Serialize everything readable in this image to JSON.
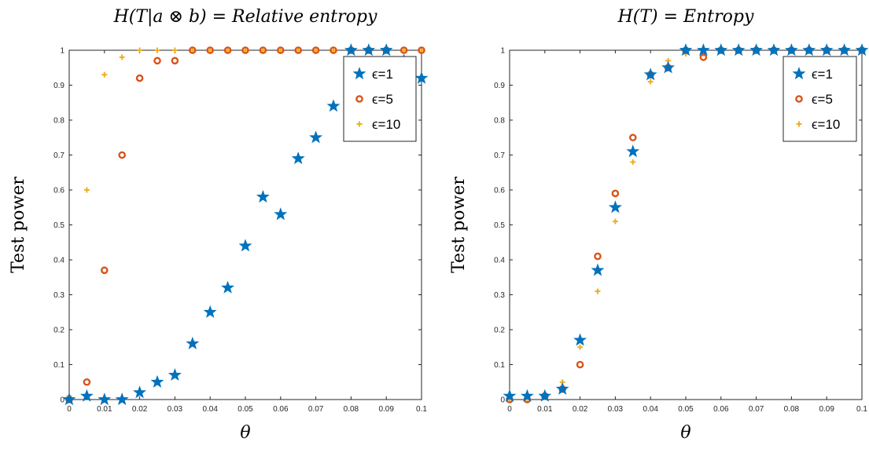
{
  "chart_data": [
    {
      "type": "scatter",
      "title": "H(T|a ⊗ b) = Relative entropy",
      "xlabel": "θ",
      "ylabel": "Test power",
      "xlim": [
        0,
        0.1
      ],
      "ylim": [
        0,
        1
      ],
      "x_ticks": [
        "0",
        "0.01",
        "0.02",
        "0.03",
        "0.04",
        "0.05",
        "0.06",
        "0.07",
        "0.08",
        "0.09",
        "0.1"
      ],
      "y_ticks": [
        "0",
        "0.1",
        "0.2",
        "0.3",
        "0.4",
        "0.5",
        "0.6",
        "0.7",
        "0.8",
        "0.9",
        "1"
      ],
      "legend_position": "top-right",
      "grid": false,
      "x": [
        0,
        0.005,
        0.01,
        0.015,
        0.02,
        0.025,
        0.03,
        0.035,
        0.04,
        0.045,
        0.05,
        0.055,
        0.06,
        0.065,
        0.07,
        0.075,
        0.08,
        0.085,
        0.09,
        0.095,
        0.1
      ],
      "series": [
        {
          "name": "ϵ=1",
          "marker": "star",
          "color": "#0072BD",
          "values": [
            0,
            0.01,
            0,
            0,
            0.02,
            0.05,
            0.07,
            0.16,
            0.25,
            0.32,
            0.44,
            0.58,
            0.53,
            0.69,
            0.75,
            0.84,
            1.0,
            1.0,
            1.0,
            0.97,
            0.92
          ]
        },
        {
          "name": "ϵ=5",
          "marker": "circle",
          "color": "#D95319",
          "values": [
            0,
            0.05,
            0.37,
            0.7,
            0.92,
            0.97,
            0.97,
            1,
            1,
            1,
            1,
            1,
            1,
            1,
            1,
            1,
            1,
            1,
            1,
            1,
            1
          ]
        },
        {
          "name": "ϵ=10",
          "marker": "plus",
          "color": "#EDB120",
          "values": [
            0.01,
            0.6,
            0.93,
            0.98,
            1,
            1,
            1,
            1,
            1,
            1,
            1,
            1,
            1,
            1,
            1,
            1,
            1,
            1,
            1,
            1,
            1
          ]
        }
      ]
    },
    {
      "type": "scatter",
      "title": "H(T) = Entropy",
      "xlabel": "θ",
      "ylabel": "Test power",
      "xlim": [
        0,
        0.1
      ],
      "ylim": [
        0,
        1
      ],
      "x_ticks": [
        "0",
        "0.01",
        "0.02",
        "0.03",
        "0.04",
        "0.05",
        "0.06",
        "0.07",
        "0.08",
        "0.09",
        "0.1"
      ],
      "y_ticks": [
        "0",
        "0.1",
        "0.2",
        "0.3",
        "0.4",
        "0.5",
        "0.6",
        "0.7",
        "0.8",
        "0.9",
        "1"
      ],
      "legend_position": "top-right",
      "grid": false,
      "x": [
        0,
        0.005,
        0.01,
        0.015,
        0.02,
        0.025,
        0.03,
        0.035,
        0.04,
        0.045,
        0.05,
        0.055,
        0.06,
        0.065,
        0.07,
        0.075,
        0.08,
        0.085,
        0.09,
        0.095,
        0.1
      ],
      "series": [
        {
          "name": "ϵ=1",
          "marker": "star",
          "color": "#0072BD",
          "values": [
            0.01,
            0.01,
            0.01,
            0.03,
            0.17,
            0.37,
            0.55,
            0.71,
            0.93,
            0.95,
            1.0,
            1.0,
            1,
            1,
            1,
            1,
            1,
            1,
            1,
            1,
            1
          ]
        },
        {
          "name": "ϵ=5",
          "marker": "circle",
          "color": "#D95319",
          "values": [
            0,
            0,
            0.01,
            0.03,
            0.1,
            0.41,
            0.59,
            0.75,
            0.93,
            0.95,
            1.0,
            0.98,
            1,
            1,
            1,
            1,
            1,
            1,
            1,
            1,
            1
          ]
        },
        {
          "name": "ϵ=10",
          "marker": "plus",
          "color": "#EDB120",
          "values": [
            0,
            0,
            0.01,
            0.05,
            0.15,
            0.31,
            0.51,
            0.68,
            0.91,
            0.97,
            0.99,
            0.99,
            1,
            1,
            1,
            1,
            1,
            1,
            1,
            1,
            1
          ]
        }
      ]
    }
  ]
}
